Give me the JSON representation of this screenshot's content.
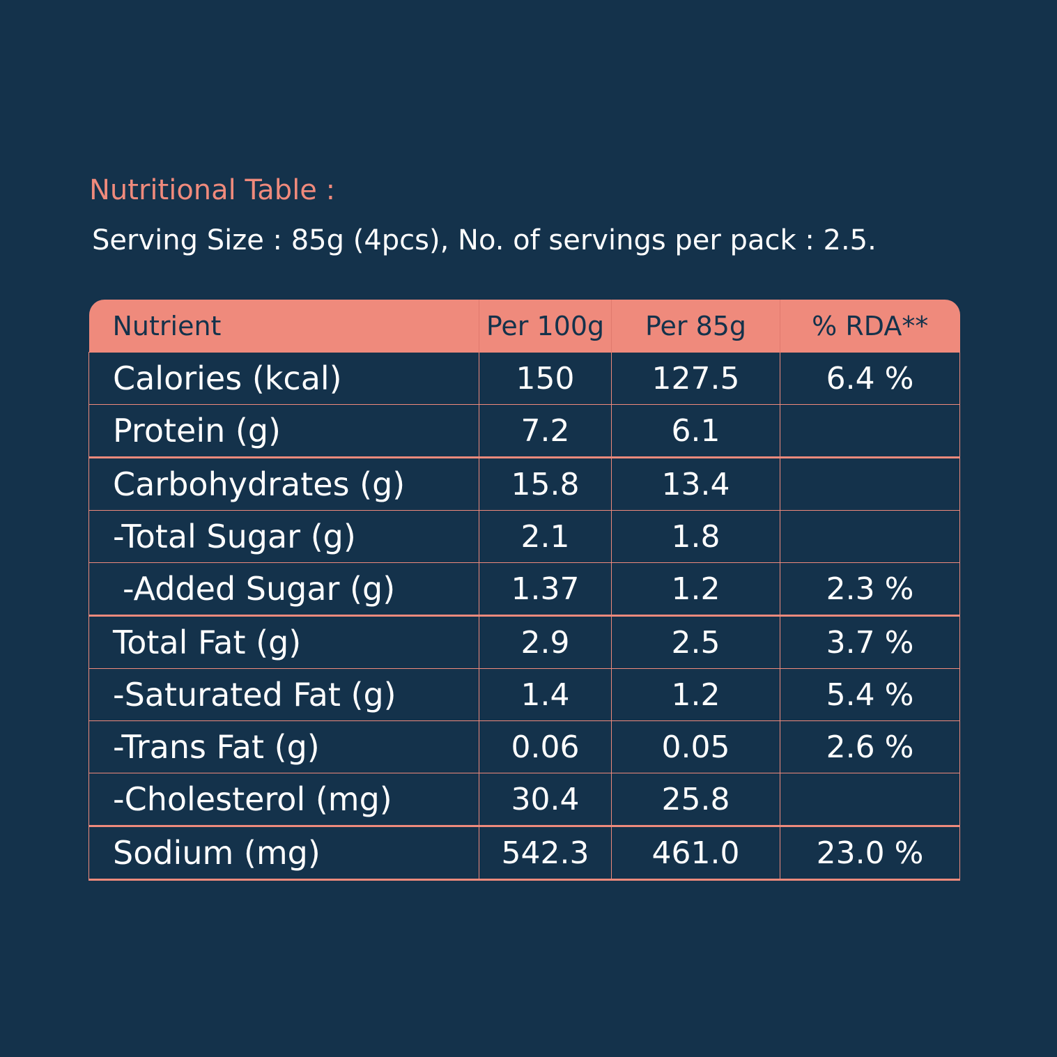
{
  "header": {
    "title": "Nutritional Table :",
    "subtitle": "Serving Size : 85g (4pcs), No. of servings per pack : 2.5."
  },
  "table": {
    "columns": [
      "Nutrient",
      "Per 100g",
      "Per 85g",
      "% RDA**"
    ],
    "rows": [
      [
        "Calories (kcal)",
        "150",
        "127.5",
        "6.4 %"
      ],
      [
        "Protein (g)",
        "7.2",
        "6.1",
        ""
      ],
      [
        "Carbohydrates (g)",
        "15.8",
        "13.4",
        ""
      ],
      [
        "-Total Sugar (g)",
        "2.1",
        "1.8",
        ""
      ],
      [
        "-Added Sugar (g)",
        "1.37",
        "1.2",
        "2.3 %"
      ],
      [
        "Total Fat (g)",
        "2.9",
        "2.5",
        "3.7 %"
      ],
      [
        "-Saturated Fat (g)",
        "1.4",
        "1.2",
        "5.4 %"
      ],
      [
        "-Trans Fat (g)",
        "0.06",
        "0.05",
        "2.6 %"
      ],
      [
        "-Cholesterol (mg)",
        "30.4",
        "25.8",
        ""
      ],
      [
        "Sodium (mg)",
        "542.3",
        "461.0",
        "23.0 %"
      ]
    ]
  },
  "colors": {
    "background": "#14324b",
    "accent": "#ef8a7c",
    "text": "#ffffff"
  }
}
